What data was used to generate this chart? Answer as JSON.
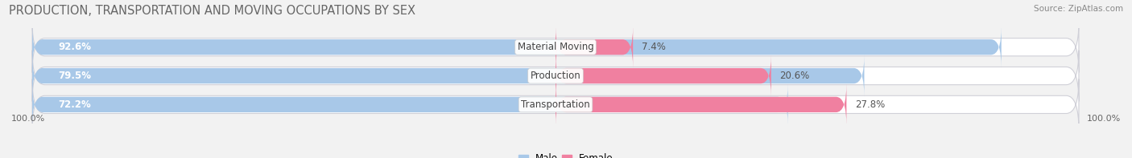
{
  "title": "PRODUCTION, TRANSPORTATION AND MOVING OCCUPATIONS BY SEX",
  "source": "Source: ZipAtlas.com",
  "categories": [
    "Material Moving",
    "Production",
    "Transportation"
  ],
  "male_values": [
    92.6,
    79.5,
    72.2
  ],
  "female_values": [
    7.4,
    20.6,
    27.8
  ],
  "male_color": "#a8c8e8",
  "female_color": "#f080a0",
  "bg_color": "#f2f2f2",
  "bar_bg_color": "#e2e2e8",
  "row_bg_color": "#e8e8ee",
  "title_fontsize": 10.5,
  "source_fontsize": 7.5,
  "male_label_fontsize": 8.5,
  "female_label_fontsize": 8.5,
  "cat_label_fontsize": 8.5,
  "axis_label_fontsize": 8,
  "legend_fontsize": 8.5,
  "bar_height": 0.62,
  "left_label": "100.0%",
  "right_label": "100.0%"
}
